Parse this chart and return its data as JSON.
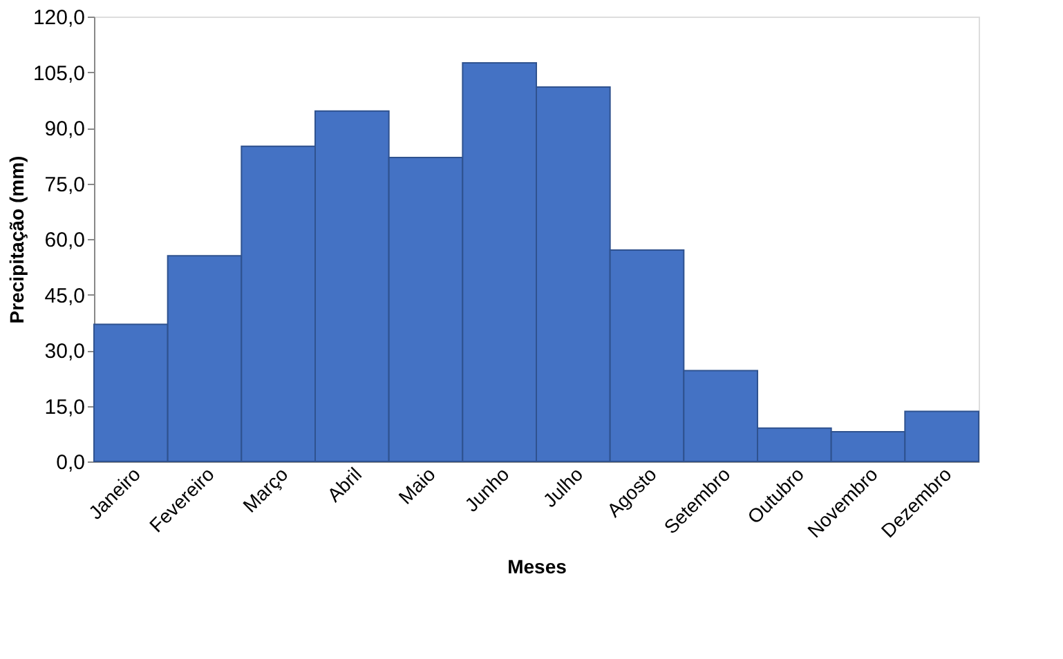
{
  "chart_data": {
    "type": "bar",
    "xlabel": "Meses",
    "ylabel": "Precipitação (mm)",
    "categories": [
      "Janeiro",
      "Fevereiro",
      "Março",
      "Abril",
      "Maio",
      "Junho",
      "Julho",
      "Agosto",
      "Setembro",
      "Outubro",
      "Novembro",
      "Dezembro"
    ],
    "values": [
      37.0,
      55.5,
      85.0,
      94.5,
      82.0,
      107.5,
      101.0,
      57.0,
      24.5,
      9.0,
      8.0,
      13.5
    ],
    "color": "#4472c4",
    "ylim": [
      0,
      120
    ],
    "yticks": [
      {
        "value": 0,
        "label": "0,0"
      },
      {
        "value": 15,
        "label": "15,0"
      },
      {
        "value": 30,
        "label": "30,0"
      },
      {
        "value": 45,
        "label": "45,0"
      },
      {
        "value": 60,
        "label": "60,0"
      },
      {
        "value": 75,
        "label": "75,0"
      },
      {
        "value": 90,
        "label": "90,0"
      },
      {
        "value": 105,
        "label": "105,0"
      },
      {
        "value": 120,
        "label": "120,0"
      }
    ],
    "grid": false
  }
}
